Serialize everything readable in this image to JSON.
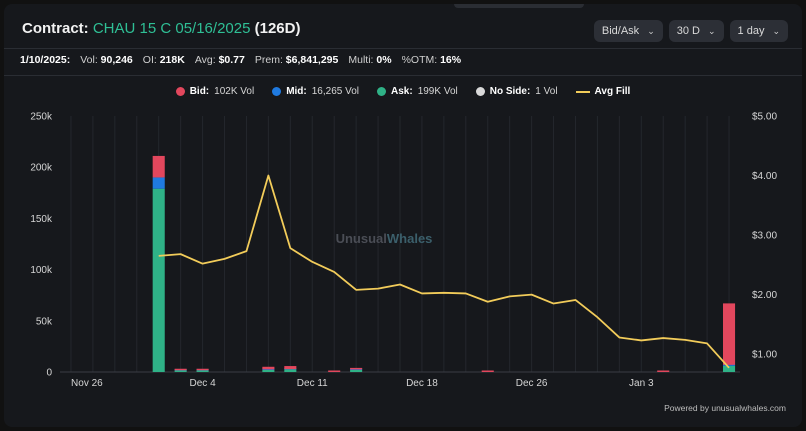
{
  "header": {
    "title_prefix": "Contract:",
    "contract": "CHAU 15 C 05/16/2025",
    "dte": "(126D)",
    "controls": [
      {
        "label": "Bid/Ask"
      },
      {
        "label": "30 D"
      },
      {
        "label": "1 day"
      }
    ]
  },
  "stats": {
    "date": "1/10/2025:",
    "vol_label": "Vol:",
    "vol": "90,246",
    "oi_label": "OI:",
    "oi": "218K",
    "avg_label": "Avg:",
    "avg": "$0.77",
    "prem_label": "Prem:",
    "prem": "$6,841,295",
    "multi_label": "Multi:",
    "multi": "0%",
    "otm_label": "%OTM:",
    "otm": "16%"
  },
  "legend": [
    {
      "name": "Bid:",
      "value": "102K Vol",
      "color": "#e2475d"
    },
    {
      "name": "Mid:",
      "value": "16,265 Vol",
      "color": "#1f7ae0"
    },
    {
      "name": "Ask:",
      "value": "199K Vol",
      "color": "#2fb287"
    },
    {
      "name": "No Side:",
      "value": "1 Vol",
      "color": "#d9d9d9"
    },
    {
      "name": "Avg Fill",
      "value": "",
      "color": "#f2cc5a"
    }
  ],
  "watermark": {
    "part1": "Unusual",
    "part2": "Whales"
  },
  "powered_by": "Powered by unusualwhales.com",
  "chart_data": {
    "type": "bar",
    "x_ticks": [
      "Nov 26",
      "Dec 4",
      "Dec 11",
      "Dec 18",
      "Dec 26",
      "Jan 3"
    ],
    "y_left_ticks": [
      "0",
      "50k",
      "100k",
      "150k",
      "200k",
      "250k"
    ],
    "y_left_lim": [
      0,
      250000
    ],
    "y_right_ticks": [
      "$1.00",
      "$2.00",
      "$3.00",
      "$4.00",
      "$5.00"
    ],
    "y_right_lim": [
      0.7,
      5.0
    ],
    "grid": true,
    "dates": [
      "Nov 25",
      "Nov 26",
      "Nov 27",
      "Nov 29",
      "Dec 2",
      "Dec 3",
      "Dec 4",
      "Dec 5",
      "Dec 6",
      "Dec 9",
      "Dec 10",
      "Dec 11",
      "Dec 12",
      "Dec 13",
      "Dec 16",
      "Dec 17",
      "Dec 18",
      "Dec 19",
      "Dec 20",
      "Dec 23",
      "Dec 24",
      "Dec 26",
      "Dec 27",
      "Dec 30",
      "Dec 31",
      "Jan 2",
      "Jan 3",
      "Jan 6",
      "Jan 7",
      "Jan 8",
      "Jan 10"
    ],
    "series": [
      {
        "name": "Ask",
        "color": "#2fb287",
        "values": [
          0,
          0,
          0,
          0,
          179000,
          1500,
          1500,
          0,
          0,
          2000,
          2500,
          0,
          0,
          2000,
          0,
          0,
          0,
          0,
          0,
          0,
          0,
          0,
          0,
          0,
          0,
          0,
          0,
          0,
          0,
          0,
          6000
        ]
      },
      {
        "name": "Mid",
        "color": "#1f7ae0",
        "values": [
          0,
          0,
          0,
          0,
          11000,
          200,
          200,
          0,
          0,
          600,
          300,
          0,
          0,
          500,
          0,
          0,
          0,
          0,
          0,
          0,
          0,
          0,
          0,
          0,
          0,
          0,
          0,
          0,
          0,
          0,
          1000
        ]
      },
      {
        "name": "Bid",
        "color": "#e2475d",
        "values": [
          0,
          0,
          0,
          0,
          21000,
          800,
          900,
          0,
          0,
          2500,
          3000,
          0,
          500,
          1500,
          0,
          0,
          0,
          0,
          0,
          500,
          0,
          0,
          0,
          0,
          0,
          0,
          0,
          500,
          0,
          0,
          60000
        ]
      },
      {
        "name": "No Side",
        "color": "#d9d9d9",
        "values": [
          0,
          0,
          0,
          0,
          0,
          0,
          0,
          0,
          0,
          0,
          0,
          0,
          0,
          0,
          0,
          0,
          0,
          0,
          0,
          0,
          0,
          0,
          0,
          0,
          0,
          0,
          0,
          0,
          0,
          0,
          1
        ]
      }
    ],
    "avg_fill": {
      "name": "Avg Fill",
      "color": "#f2cc5a",
      "values": [
        null,
        null,
        null,
        null,
        2.65,
        2.68,
        2.52,
        2.6,
        2.73,
        4.0,
        2.78,
        2.55,
        2.38,
        2.08,
        2.1,
        2.17,
        2.02,
        2.03,
        2.02,
        1.88,
        1.97,
        2.0,
        1.85,
        1.91,
        1.62,
        1.28,
        1.23,
        1.27,
        1.24,
        1.18,
        0.77
      ]
    }
  }
}
